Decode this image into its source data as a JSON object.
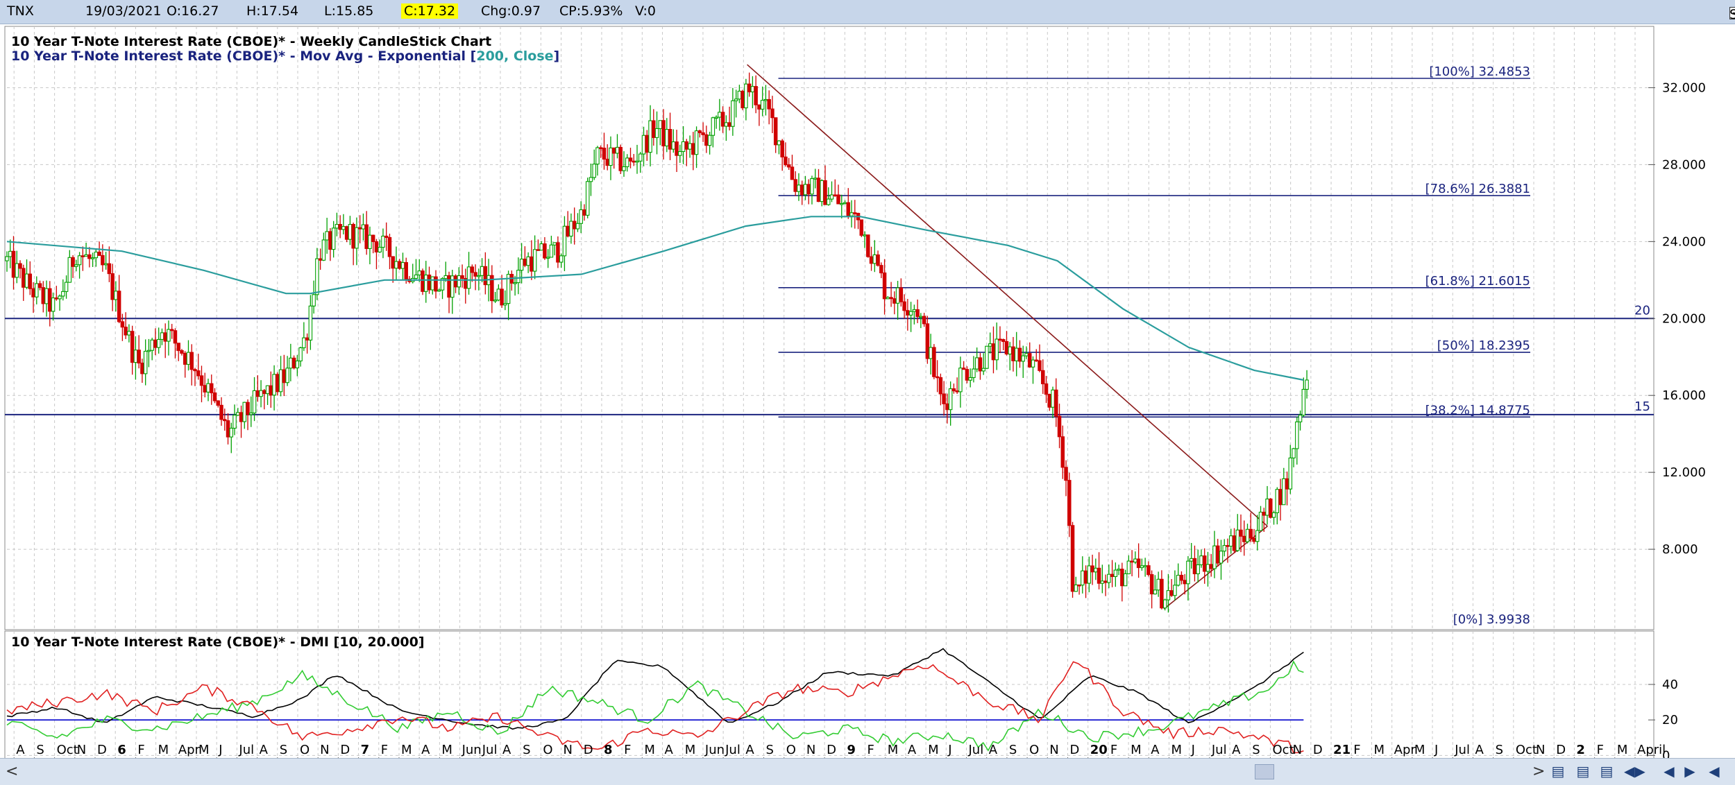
{
  "header": {
    "symbol": "TNX",
    "date": "19/03/2021",
    "open": "O:16.27",
    "high": "H:17.54",
    "low": "L:15.85",
    "close": "C:17.32",
    "change": "Chg:0.97",
    "change_pct": "CP:5.93%",
    "volume": "V:0",
    "show_last": "Show Last",
    "show_last_checked": true
  },
  "colors": {
    "candle_up": "#00a000",
    "candle_down": "#d00000",
    "ema": "#2a9d9d",
    "fib": "#1a237e",
    "trend": "#8b1a1a",
    "adx": "#000000",
    "di_plus": "#33cc33",
    "di_minus": "#e02020",
    "dmi_level": "#0000cc",
    "highlight": "#ffff00"
  },
  "chart_data": [
    {
      "type": "candlestick",
      "title_line1": "10 Year T-Note Interest Rate (CBOE)* - Weekly CandleStick Chart",
      "title_line2_prefix": "10 Year T-Note Interest Rate (CBOE)* - Mov Avg - Exponential [",
      "title_line2_params": "200, Close",
      "title_line2_suffix": "]",
      "ylim": [
        4.0,
        34.0
      ],
      "y_ticks": [
        "32.000",
        "28.000",
        "24.000",
        "20.000",
        "16.000",
        "12.000",
        "8.000"
      ],
      "y_tick_values": [
        32,
        28,
        24,
        20,
        16,
        12,
        8
      ],
      "horizontal_lines": [
        {
          "value": 20,
          "label": "20"
        },
        {
          "value": 15,
          "label": "15"
        }
      ],
      "fib_levels": [
        {
          "label": "[100%] 32.4853",
          "value": 32.4853
        },
        {
          "label": "[78.6%] 26.3881",
          "value": 26.3881
        },
        {
          "label": "[61.8%] 21.6015",
          "value": 21.6015
        },
        {
          "label": "[50%] 18.2395",
          "value": 18.2395
        },
        {
          "label": "[38.2%] 14.8775",
          "value": 14.8775
        },
        {
          "label": "[0%] 3.9938",
          "value": 3.9938
        }
      ],
      "trendlines": [
        {
          "from": {
            "week": 0.451,
            "value": 33.2
          },
          "to": {
            "week": 0.768,
            "value": 9.2
          }
        },
        {
          "from": {
            "week": 0.705,
            "value": 4.9
          },
          "to": {
            "week": 0.768,
            "value": 9.2
          }
        }
      ],
      "price_keyframes": [
        {
          "week": 0.0,
          "value": 23.0
        },
        {
          "week": 0.015,
          "value": 21.5
        },
        {
          "week": 0.03,
          "value": 20.5
        },
        {
          "week": 0.042,
          "value": 23.5
        },
        {
          "week": 0.06,
          "value": 22.5
        },
        {
          "week": 0.08,
          "value": 17.5
        },
        {
          "week": 0.095,
          "value": 19.5
        },
        {
          "week": 0.115,
          "value": 17.5
        },
        {
          "week": 0.135,
          "value": 14.0
        },
        {
          "week": 0.15,
          "value": 15.5
        },
        {
          "week": 0.17,
          "value": 17.0
        },
        {
          "week": 0.182,
          "value": 19.0
        },
        {
          "week": 0.19,
          "value": 23.5
        },
        {
          "week": 0.205,
          "value": 24.5
        },
        {
          "week": 0.225,
          "value": 24.0
        },
        {
          "week": 0.245,
          "value": 22.5
        },
        {
          "week": 0.265,
          "value": 21.5
        },
        {
          "week": 0.285,
          "value": 22.5
        },
        {
          "week": 0.3,
          "value": 21.0
        },
        {
          "week": 0.315,
          "value": 23.0
        },
        {
          "week": 0.335,
          "value": 23.5
        },
        {
          "week": 0.35,
          "value": 25.5
        },
        {
          "week": 0.36,
          "value": 28.5
        },
        {
          "week": 0.38,
          "value": 28.0
        },
        {
          "week": 0.395,
          "value": 30.0
        },
        {
          "week": 0.41,
          "value": 28.5
        },
        {
          "week": 0.425,
          "value": 29.5
        },
        {
          "week": 0.44,
          "value": 30.5
        },
        {
          "week": 0.452,
          "value": 32.0
        },
        {
          "week": 0.465,
          "value": 30.5
        },
        {
          "week": 0.48,
          "value": 27.0
        },
        {
          "week": 0.5,
          "value": 26.5
        },
        {
          "week": 0.52,
          "value": 25.0
        },
        {
          "week": 0.535,
          "value": 21.5
        },
        {
          "week": 0.555,
          "value": 20.5
        },
        {
          "week": 0.57,
          "value": 15.5
        },
        {
          "week": 0.58,
          "value": 17.0
        },
        {
          "week": 0.595,
          "value": 18.0
        },
        {
          "week": 0.61,
          "value": 18.5
        },
        {
          "week": 0.625,
          "value": 17.5
        },
        {
          "week": 0.638,
          "value": 15.5
        },
        {
          "week": 0.645,
          "value": 12.0
        },
        {
          "week": 0.65,
          "value": 5.5
        },
        {
          "week": 0.66,
          "value": 7.0
        },
        {
          "week": 0.675,
          "value": 6.5
        },
        {
          "week": 0.69,
          "value": 7.0
        },
        {
          "week": 0.705,
          "value": 5.5
        },
        {
          "week": 0.72,
          "value": 6.8
        },
        {
          "week": 0.74,
          "value": 8.0
        },
        {
          "week": 0.76,
          "value": 9.0
        },
        {
          "week": 0.772,
          "value": 10.5
        },
        {
          "week": 0.78,
          "value": 11.5
        },
        {
          "week": 0.786,
          "value": 14.5
        },
        {
          "week": 0.792,
          "value": 17.3
        }
      ],
      "ema_series_name": "Mov Avg - Exponential [200, Close]",
      "ema": [
        {
          "week": 0.0,
          "value": 24.0
        },
        {
          "week": 0.07,
          "value": 23.5
        },
        {
          "week": 0.12,
          "value": 22.5
        },
        {
          "week": 0.17,
          "value": 21.3
        },
        {
          "week": 0.185,
          "value": 21.3
        },
        {
          "week": 0.23,
          "value": 22.0
        },
        {
          "week": 0.29,
          "value": 22.0
        },
        {
          "week": 0.35,
          "value": 22.3
        },
        {
          "week": 0.4,
          "value": 23.5
        },
        {
          "week": 0.45,
          "value": 24.8
        },
        {
          "week": 0.49,
          "value": 25.3
        },
        {
          "week": 0.52,
          "value": 25.3
        },
        {
          "week": 0.56,
          "value": 24.6
        },
        {
          "week": 0.61,
          "value": 23.8
        },
        {
          "week": 0.64,
          "value": 23.0
        },
        {
          "week": 0.68,
          "value": 20.5
        },
        {
          "week": 0.72,
          "value": 18.5
        },
        {
          "week": 0.76,
          "value": 17.3
        },
        {
          "week": 0.79,
          "value": 16.8
        }
      ]
    },
    {
      "type": "line",
      "title": "10 Year T-Note Interest Rate (CBOE)* - DMI [10, 20.000]",
      "ylim": [
        -3,
        65
      ],
      "y_ticks": [
        "40",
        "20",
        "0"
      ],
      "y_tick_values": [
        40,
        20,
        0
      ],
      "level_value": 20,
      "series": [
        {
          "key": "adx",
          "values_keyframes": [
            {
              "week": 0.0,
              "value": 22
            },
            {
              "week": 0.03,
              "value": 27
            },
            {
              "week": 0.06,
              "value": 18
            },
            {
              "week": 0.09,
              "value": 33
            },
            {
              "week": 0.12,
              "value": 28
            },
            {
              "week": 0.15,
              "value": 22
            },
            {
              "week": 0.18,
              "value": 32
            },
            {
              "week": 0.2,
              "value": 46
            },
            {
              "week": 0.24,
              "value": 25
            },
            {
              "week": 0.28,
              "value": 18
            },
            {
              "week": 0.31,
              "value": 15
            },
            {
              "week": 0.34,
              "value": 20
            },
            {
              "week": 0.37,
              "value": 53
            },
            {
              "week": 0.4,
              "value": 50
            },
            {
              "week": 0.44,
              "value": 18
            },
            {
              "week": 0.47,
              "value": 30
            },
            {
              "week": 0.5,
              "value": 47
            },
            {
              "week": 0.54,
              "value": 45
            },
            {
              "week": 0.57,
              "value": 60
            },
            {
              "week": 0.6,
              "value": 40
            },
            {
              "week": 0.63,
              "value": 20
            },
            {
              "week": 0.66,
              "value": 45
            },
            {
              "week": 0.69,
              "value": 35
            },
            {
              "week": 0.72,
              "value": 18
            },
            {
              "week": 0.76,
              "value": 38
            },
            {
              "week": 0.79,
              "value": 58
            }
          ]
        },
        {
          "key": "di_plus",
          "values_keyframes": [
            {
              "week": 0.0,
              "value": 18
            },
            {
              "week": 0.03,
              "value": 10
            },
            {
              "week": 0.06,
              "value": 20
            },
            {
              "week": 0.09,
              "value": 15
            },
            {
              "week": 0.12,
              "value": 22
            },
            {
              "week": 0.15,
              "value": 30
            },
            {
              "week": 0.18,
              "value": 45
            },
            {
              "week": 0.21,
              "value": 30
            },
            {
              "week": 0.24,
              "value": 15
            },
            {
              "week": 0.27,
              "value": 25
            },
            {
              "week": 0.3,
              "value": 12
            },
            {
              "week": 0.33,
              "value": 38
            },
            {
              "week": 0.36,
              "value": 30
            },
            {
              "week": 0.39,
              "value": 20
            },
            {
              "week": 0.42,
              "value": 40
            },
            {
              "week": 0.45,
              "value": 25
            },
            {
              "week": 0.48,
              "value": 10
            },
            {
              "week": 0.51,
              "value": 15
            },
            {
              "week": 0.54,
              "value": 8
            },
            {
              "week": 0.57,
              "value": 12
            },
            {
              "week": 0.6,
              "value": 5
            },
            {
              "week": 0.63,
              "value": 25
            },
            {
              "week": 0.66,
              "value": 10
            },
            {
              "week": 0.7,
              "value": 15
            },
            {
              "week": 0.74,
              "value": 28
            },
            {
              "week": 0.77,
              "value": 38
            },
            {
              "week": 0.785,
              "value": 52
            },
            {
              "week": 0.79,
              "value": 44
            }
          ]
        },
        {
          "key": "di_minus",
          "values_keyframes": [
            {
              "week": 0.0,
              "value": 25
            },
            {
              "week": 0.03,
              "value": 30
            },
            {
              "week": 0.06,
              "value": 35
            },
            {
              "week": 0.09,
              "value": 25
            },
            {
              "week": 0.12,
              "value": 38
            },
            {
              "week": 0.15,
              "value": 28
            },
            {
              "week": 0.18,
              "value": 10
            },
            {
              "week": 0.21,
              "value": 15
            },
            {
              "week": 0.24,
              "value": 22
            },
            {
              "week": 0.27,
              "value": 15
            },
            {
              "week": 0.3,
              "value": 22
            },
            {
              "week": 0.33,
              "value": 10
            },
            {
              "week": 0.36,
              "value": 3
            },
            {
              "week": 0.39,
              "value": 15
            },
            {
              "week": 0.42,
              "value": 10
            },
            {
              "week": 0.45,
              "value": 25
            },
            {
              "week": 0.48,
              "value": 38
            },
            {
              "week": 0.51,
              "value": 35
            },
            {
              "week": 0.54,
              "value": 45
            },
            {
              "week": 0.56,
              "value": 52
            },
            {
              "week": 0.6,
              "value": 30
            },
            {
              "week": 0.63,
              "value": 20
            },
            {
              "week": 0.65,
              "value": 55
            },
            {
              "week": 0.68,
              "value": 25
            },
            {
              "week": 0.71,
              "value": 12
            },
            {
              "week": 0.74,
              "value": 15
            },
            {
              "week": 0.77,
              "value": 8
            },
            {
              "week": 0.79,
              "value": 3
            }
          ]
        }
      ]
    }
  ],
  "x_axis": {
    "labels": [
      "A",
      "S",
      "Oct",
      "N",
      "D",
      "6",
      "F",
      "M",
      "Apr",
      "M",
      "J",
      "Jul",
      "A",
      "S",
      "O",
      "N",
      "D",
      "7",
      "F",
      "M",
      "A",
      "M",
      "Jun",
      "Jul",
      "A",
      "S",
      "O",
      "N",
      "D",
      "8",
      "F",
      "M",
      "A",
      "M",
      "Jun",
      "Jul",
      "A",
      "S",
      "O",
      "N",
      "D",
      "9",
      "F",
      "M",
      "A",
      "M",
      "J",
      "Jul",
      "A",
      "S",
      "O",
      "N",
      "D",
      "20",
      "F",
      "M",
      "A",
      "M",
      "J",
      "Jul",
      "A",
      "S",
      "Oct",
      "N",
      "D",
      "21",
      "F",
      "M",
      "Apr",
      "M",
      "J",
      "Jul",
      "A",
      "S",
      "Oct",
      "N",
      "D",
      "2",
      "F",
      "M",
      "April"
    ],
    "bold_labels": [
      "6",
      "7",
      "8",
      "9",
      "20",
      "21",
      "2"
    ]
  },
  "bottom_bar": {
    "left_arrow": "<",
    "right_arrow": ">",
    "buttons": [
      "▤",
      "▤",
      "▤",
      "◀▶",
      "◀",
      "▶",
      "◀"
    ]
  }
}
